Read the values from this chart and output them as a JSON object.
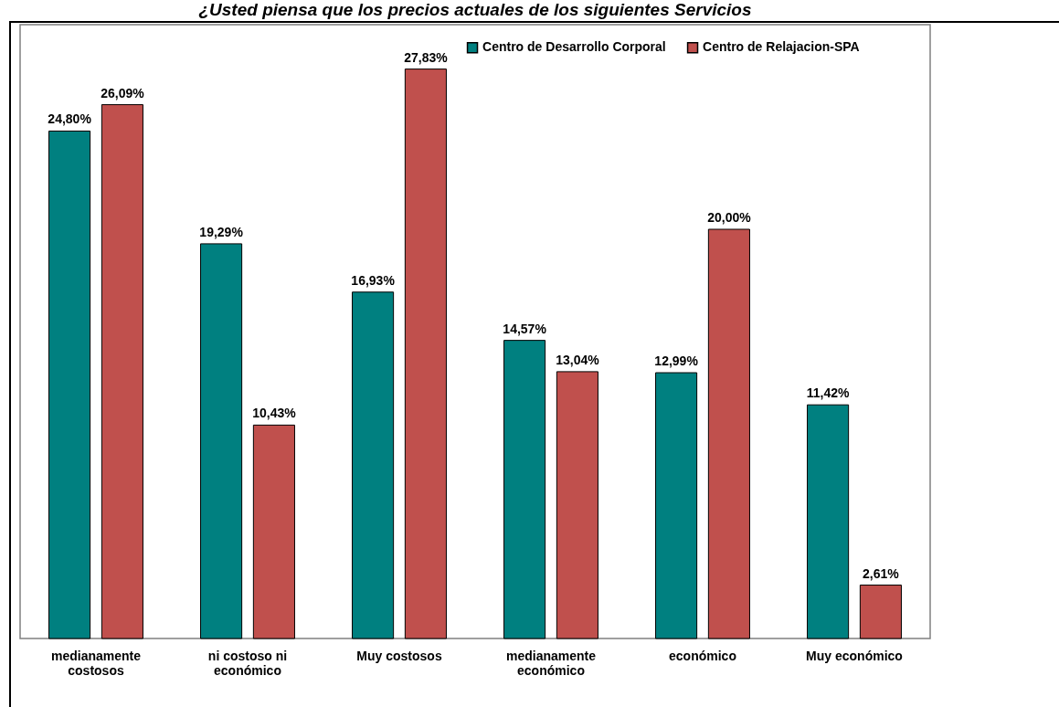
{
  "chart_data": {
    "type": "bar",
    "title": "¿Usted piensa que los precios actuales de los siguientes Servicios",
    "categories": [
      "medianamente costosos",
      "ni costoso ni económico",
      "Muy costosos",
      "medianamente económico",
      "económico",
      "Muy económico"
    ],
    "series": [
      {
        "name": "Centro de Desarrollo Corporal",
        "color": "#008080",
        "values": [
          24.8,
          19.29,
          16.93,
          14.57,
          12.99,
          11.42
        ],
        "value_labels": [
          "24,80%",
          "19,29%",
          "16,93%",
          "14,57%",
          "12,99%",
          "11,42%"
        ]
      },
      {
        "name": "Centro de Relajacion-SPA",
        "color": "#c0504d",
        "values": [
          26.09,
          10.43,
          27.83,
          13.04,
          20.0,
          2.61
        ],
        "value_labels": [
          "26,09%",
          "10,43%",
          "27,83%",
          "13,04%",
          "20,00%",
          "2,61%"
        ]
      }
    ],
    "ylim": [
      0,
      30
    ],
    "tick_labels": "x",
    "legend": "top right",
    "grid": false
  }
}
